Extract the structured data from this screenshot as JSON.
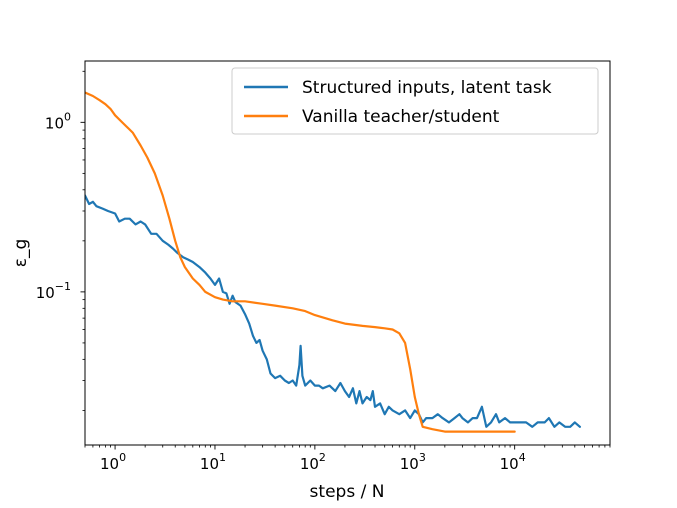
{
  "chart_data": {
    "type": "line",
    "xscale": "log",
    "yscale": "log",
    "xlabel": "steps / N",
    "ylabel": "ε_g",
    "xlim": [
      0.5,
      90000
    ],
    "ylim": [
      0.0125,
      2.3
    ],
    "x_ticks": [
      {
        "value": 1,
        "base": "10",
        "exp": "0"
      },
      {
        "value": 10,
        "base": "10",
        "exp": "1"
      },
      {
        "value": 100,
        "base": "10",
        "exp": "2"
      },
      {
        "value": 1000,
        "base": "10",
        "exp": "3"
      },
      {
        "value": 10000,
        "base": "10",
        "exp": "4"
      }
    ],
    "y_ticks": [
      {
        "value": 0.1,
        "base": "10",
        "exp": "−1"
      },
      {
        "value": 1,
        "base": "10",
        "exp": "0"
      }
    ],
    "legend_position": "top-right",
    "grid": false,
    "series": [
      {
        "name": "Structured inputs, latent task",
        "color": "#1f77b4",
        "points": [
          [
            0.5,
            0.37
          ],
          [
            0.55,
            0.33
          ],
          [
            0.6,
            0.34
          ],
          [
            0.65,
            0.32
          ],
          [
            0.75,
            0.31
          ],
          [
            0.85,
            0.3
          ],
          [
            1.0,
            0.29
          ],
          [
            1.1,
            0.26
          ],
          [
            1.25,
            0.27
          ],
          [
            1.4,
            0.27
          ],
          [
            1.6,
            0.25
          ],
          [
            1.8,
            0.26
          ],
          [
            2.0,
            0.25
          ],
          [
            2.3,
            0.22
          ],
          [
            2.6,
            0.22
          ],
          [
            3.0,
            0.2
          ],
          [
            3.4,
            0.19
          ],
          [
            3.8,
            0.18
          ],
          [
            4.2,
            0.17
          ],
          [
            4.8,
            0.16
          ],
          [
            5.4,
            0.155
          ],
          [
            6.0,
            0.15
          ],
          [
            7.0,
            0.14
          ],
          [
            8.0,
            0.13
          ],
          [
            9.0,
            0.12
          ],
          [
            10.0,
            0.11
          ],
          [
            11.0,
            0.12
          ],
          [
            12.0,
            0.1
          ],
          [
            13.0,
            0.098
          ],
          [
            14.0,
            0.085
          ],
          [
            15.0,
            0.095
          ],
          [
            16.0,
            0.087
          ],
          [
            18.0,
            0.083
          ],
          [
            20.0,
            0.074
          ],
          [
            22.0,
            0.065
          ],
          [
            24.0,
            0.055
          ],
          [
            26.0,
            0.05
          ],
          [
            28.0,
            0.052
          ],
          [
            30.0,
            0.045
          ],
          [
            33.0,
            0.04
          ],
          [
            36.0,
            0.033
          ],
          [
            40.0,
            0.031
          ],
          [
            45.0,
            0.032
          ],
          [
            50.0,
            0.03
          ],
          [
            55.0,
            0.029
          ],
          [
            60.0,
            0.03
          ],
          [
            65.0,
            0.028
          ],
          [
            70.0,
            0.037
          ],
          [
            72.0,
            0.048
          ],
          [
            75.0,
            0.032
          ],
          [
            80.0,
            0.028
          ],
          [
            90.0,
            0.03
          ],
          [
            100.0,
            0.028
          ],
          [
            110.0,
            0.028
          ],
          [
            120.0,
            0.027
          ],
          [
            140.0,
            0.028
          ],
          [
            160.0,
            0.026
          ],
          [
            180.0,
            0.029
          ],
          [
            200.0,
            0.026
          ],
          [
            220.0,
            0.024
          ],
          [
            240.0,
            0.027
          ],
          [
            260.0,
            0.022
          ],
          [
            280.0,
            0.026
          ],
          [
            300.0,
            0.022
          ],
          [
            330.0,
            0.024
          ],
          [
            360.0,
            0.023
          ],
          [
            380.0,
            0.026
          ],
          [
            400.0,
            0.021
          ],
          [
            450.0,
            0.022
          ],
          [
            500.0,
            0.019
          ],
          [
            550.0,
            0.021
          ],
          [
            600.0,
            0.02
          ],
          [
            700.0,
            0.019
          ],
          [
            800.0,
            0.02
          ],
          [
            900.0,
            0.018
          ],
          [
            1000.0,
            0.02
          ],
          [
            1100.0,
            0.019
          ],
          [
            1200.0,
            0.017
          ],
          [
            1300.0,
            0.018
          ],
          [
            1500.0,
            0.018
          ],
          [
            1700.0,
            0.019
          ],
          [
            1900.0,
            0.018
          ],
          [
            2200.0,
            0.017
          ],
          [
            2500.0,
            0.018
          ],
          [
            2800.0,
            0.019
          ],
          [
            3000.0,
            0.018
          ],
          [
            3400.0,
            0.017
          ],
          [
            3800.0,
            0.018
          ],
          [
            4200.0,
            0.018
          ],
          [
            4700.0,
            0.021
          ],
          [
            5200.0,
            0.016
          ],
          [
            5800.0,
            0.017
          ],
          [
            6500.0,
            0.019
          ],
          [
            7000.0,
            0.017
          ],
          [
            8000.0,
            0.018
          ],
          [
            9000.0,
            0.017
          ],
          [
            10000.0,
            0.017
          ],
          [
            11000.0,
            0.017
          ],
          [
            13000.0,
            0.017
          ],
          [
            15000.0,
            0.016
          ],
          [
            17000.0,
            0.017
          ],
          [
            20000.0,
            0.017
          ],
          [
            22000.0,
            0.018
          ],
          [
            25000.0,
            0.016
          ],
          [
            28000.0,
            0.017
          ],
          [
            32000.0,
            0.016
          ],
          [
            36000.0,
            0.016
          ],
          [
            40000.0,
            0.017
          ],
          [
            45000.0,
            0.016
          ]
        ]
      },
      {
        "name": "Vanilla teacher/student",
        "color": "#ff7f0e",
        "points": [
          [
            0.5,
            1.5
          ],
          [
            0.6,
            1.43
          ],
          [
            0.7,
            1.35
          ],
          [
            0.8,
            1.28
          ],
          [
            0.9,
            1.2
          ],
          [
            1.0,
            1.1
          ],
          [
            1.2,
            0.99
          ],
          [
            1.5,
            0.87
          ],
          [
            1.8,
            0.73
          ],
          [
            2.1,
            0.62
          ],
          [
            2.5,
            0.5
          ],
          [
            3.0,
            0.37
          ],
          [
            3.5,
            0.27
          ],
          [
            4.0,
            0.2
          ],
          [
            4.5,
            0.16
          ],
          [
            5.0,
            0.14
          ],
          [
            6.0,
            0.12
          ],
          [
            7.0,
            0.11
          ],
          [
            8.0,
            0.1
          ],
          [
            10.0,
            0.093
          ],
          [
            12.0,
            0.09
          ],
          [
            15.0,
            0.088
          ],
          [
            20.0,
            0.088
          ],
          [
            30.0,
            0.085
          ],
          [
            40.0,
            0.083
          ],
          [
            60.0,
            0.08
          ],
          [
            80.0,
            0.077
          ],
          [
            100.0,
            0.073
          ],
          [
            150.0,
            0.068
          ],
          [
            200.0,
            0.065
          ],
          [
            300.0,
            0.063
          ],
          [
            400.0,
            0.062
          ],
          [
            500.0,
            0.061
          ],
          [
            600.0,
            0.06
          ],
          [
            700.0,
            0.057
          ],
          [
            800.0,
            0.05
          ],
          [
            900.0,
            0.035
          ],
          [
            1000.0,
            0.024
          ],
          [
            1100.0,
            0.019
          ],
          [
            1200.0,
            0.016
          ],
          [
            1500.0,
            0.0155
          ],
          [
            2000.0,
            0.015
          ],
          [
            3000.0,
            0.015
          ],
          [
            5000.0,
            0.015
          ],
          [
            7000.0,
            0.015
          ],
          [
            10000.0,
            0.015
          ]
        ]
      }
    ]
  }
}
